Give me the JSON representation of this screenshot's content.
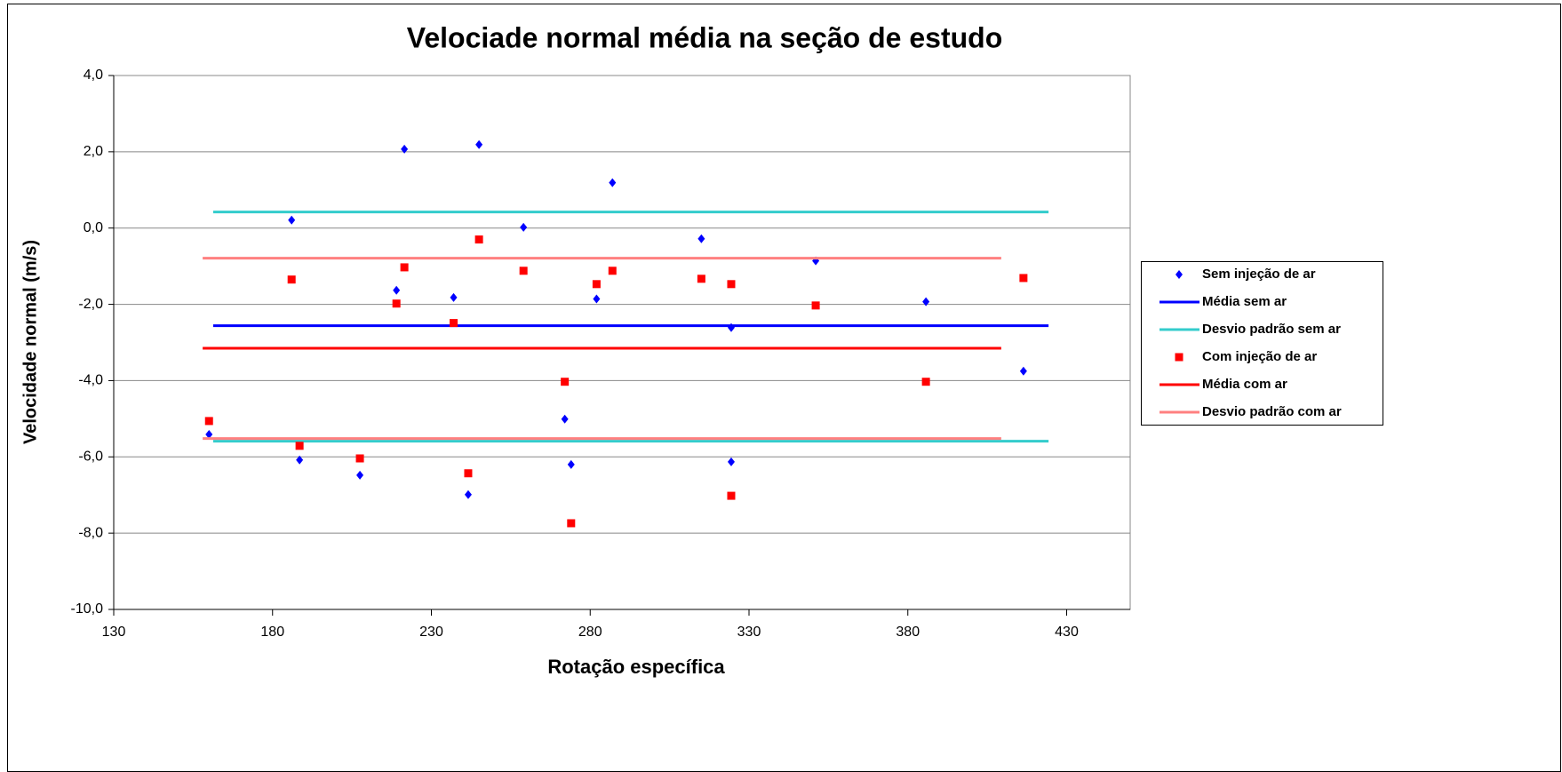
{
  "chart_data": {
    "type": "scatter",
    "title": "Velociade normal média na seção de estudo",
    "x_label": "Rotação específica",
    "y_label": "Velocidade normal (m/s)",
    "xlim": [
      130,
      450
    ],
    "xticks": [
      130,
      180,
      230,
      280,
      330,
      380,
      430
    ],
    "ylim": [
      -10,
      4
    ],
    "yticks": [
      {
        "value": -10,
        "label": "-10,0"
      },
      {
        "value": -8,
        "label": "-8,0"
      },
      {
        "value": -6,
        "label": "-6,0"
      },
      {
        "value": -4,
        "label": "-4,0"
      },
      {
        "value": -2,
        "label": "-2,0"
      },
      {
        "value": 0,
        "label": "0,0"
      },
      {
        "value": 2,
        "label": "2,0"
      },
      {
        "value": 4,
        "label": "4,0"
      }
    ],
    "grid": true,
    "legend": "right",
    "series": [
      {
        "name": "Sem injeção de ar",
        "mode": "markers",
        "marker": "diamond",
        "color": "#0000ff",
        "x": [
          160,
          186,
          188.5,
          207.5,
          219,
          221.5,
          237,
          241.6,
          245,
          259,
          272,
          274,
          282,
          287,
          315,
          324.4,
          324.4,
          351,
          385.7,
          416.4
        ],
        "values": [
          -5.41,
          0.21,
          -6.08,
          -6.48,
          -1.63,
          2.07,
          -1.82,
          -6.99,
          2.19,
          0.02,
          -5.01,
          -6.2,
          -1.86,
          1.19,
          -0.28,
          -2.61,
          -6.13,
          -0.86,
          -1.93,
          -3.75
        ]
      },
      {
        "name": "Média sem ar",
        "mode": "line",
        "color": "#0000ff",
        "x": [
          161.3,
          424.3
        ],
        "values": [
          -2.56,
          -2.56
        ]
      },
      {
        "name": "Desvio padrão sem ar",
        "mode": "line",
        "color": "#33cccc",
        "x": [
          161.3,
          424.3,
          null,
          161.3,
          424.3
        ],
        "values": [
          0.42,
          0.42,
          null,
          -5.59,
          -5.59
        ]
      },
      {
        "name": "Com injeção de ar",
        "mode": "markers",
        "marker": "square",
        "color": "#ff0000",
        "x": [
          160,
          186,
          188.5,
          207.5,
          219,
          221.5,
          237,
          241.6,
          245,
          259,
          272,
          274,
          282,
          287,
          315,
          324.4,
          324.4,
          351,
          385.7,
          416.4
        ],
        "values": [
          -5.06,
          -1.35,
          -5.71,
          -6.04,
          -1.98,
          -1.03,
          -2.49,
          -6.43,
          -0.3,
          -1.12,
          -4.03,
          -7.74,
          -1.47,
          -1.12,
          -1.33,
          -1.47,
          -7.02,
          -2.03,
          -4.03,
          -1.31
        ]
      },
      {
        "name": "Média com ar",
        "mode": "line",
        "color": "#ff0000",
        "x": [
          158,
          409.4
        ],
        "values": [
          -3.15,
          -3.15
        ]
      },
      {
        "name": "Desvio padrão com ar",
        "mode": "line",
        "color": "#ff8080",
        "x": [
          158,
          409.4,
          null,
          158,
          409.4
        ],
        "values": [
          -0.79,
          -0.79,
          null,
          -5.52,
          -5.52
        ]
      }
    ]
  }
}
